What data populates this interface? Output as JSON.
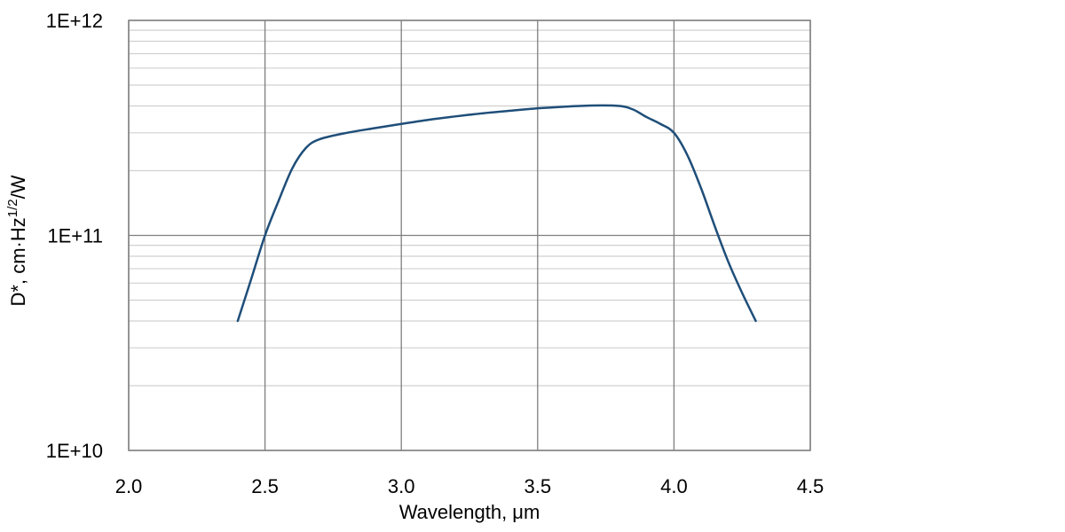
{
  "chart_data": {
    "type": "line",
    "title": "",
    "xlabel": "Wavelength, μm",
    "ylabel": {
      "prefix": "D*, cm·Hz",
      "superscript": "1/2",
      "suffix": "/W"
    },
    "xlim": [
      2.0,
      4.5
    ],
    "ylim": [
      10000000000.0,
      1000000000000.0
    ],
    "yscale": "log",
    "grid": true,
    "legend": "none",
    "x_ticks": [
      "2.0",
      "2.5",
      "3.0",
      "3.5",
      "4.0",
      "4.5"
    ],
    "x_tick_values": [
      2.0,
      2.5,
      3.0,
      3.5,
      4.0,
      4.5
    ],
    "y_ticks": [
      "1E+10",
      "1E+11",
      "1E+12"
    ],
    "y_tick_values": [
      10000000000.0,
      100000000000.0,
      1000000000000.0
    ],
    "colors": {
      "line": "#1f4e79",
      "major_grid": "#7f7f7f",
      "minor_grid": "#d0d0d0",
      "frame": "#7f7f7f"
    },
    "series": [
      {
        "x": [
          2.4,
          2.45,
          2.5,
          2.55,
          2.6,
          2.65,
          2.7,
          2.8,
          2.9,
          3.0,
          3.1,
          3.2,
          3.3,
          3.4,
          3.5,
          3.6,
          3.7,
          3.8,
          3.85,
          3.9,
          3.95,
          4.0,
          4.05,
          4.1,
          4.15,
          4.2,
          4.25,
          4.3
        ],
        "y": [
          40000000000.0,
          63000000000.0,
          100000000000.0,
          145000000000.0,
          205000000000.0,
          255000000000.0,
          280000000000.0,
          300000000000.0,
          315000000000.0,
          330000000000.0,
          345000000000.0,
          358000000000.0,
          370000000000.0,
          380000000000.0,
          390000000000.0,
          397000000000.0,
          402000000000.0,
          400000000000.0,
          385000000000.0,
          355000000000.0,
          330000000000.0,
          300000000000.0,
          235000000000.0,
          165000000000.0,
          110000000000.0,
          75000000000.0,
          54000000000.0,
          40000000000.0
        ]
      }
    ]
  }
}
